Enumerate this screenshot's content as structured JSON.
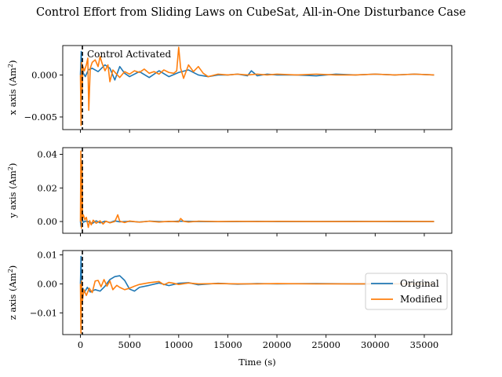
{
  "chart_data": {
    "type": "line",
    "title": "Control Effort from Sliding Laws on CubeSat, All-in-One Disturbance Case",
    "xlabel": "Time (s)",
    "xlim": [
      -1800,
      37800
    ],
    "xticks": [
      0,
      5000,
      10000,
      15000,
      20000,
      25000,
      30000,
      35000
    ],
    "xtick_labels": [
      "0",
      "5000",
      "10000",
      "15000",
      "20000",
      "25000",
      "30000",
      "35000"
    ],
    "activation_time": 200,
    "annotation": "Control Activated",
    "legend": {
      "placement": "right",
      "entries": [
        {
          "name": "Original",
          "color": "#1f77b4"
        },
        {
          "name": "Modified",
          "color": "#ff7f0e"
        }
      ]
    },
    "subplots": [
      {
        "ylabel": "x axis (Am²)",
        "ylabel_main": "x axis (Am",
        "ylabel_sup": "2",
        "ylabel_end": ")",
        "ylim": [
          -0.0065,
          0.0035
        ],
        "yticks": [
          0.0,
          -0.005
        ],
        "ytick_labels": [
          "0.000",
          "−0.005"
        ],
        "series": [
          {
            "name": "Original",
            "color": "#1f77b4",
            "x": [
              0,
              80,
              150,
              200,
              300,
              500,
              800,
              1200,
              1800,
              2500,
              3000,
              3500,
              4000,
              4500,
              5000,
              6000,
              7000,
              8000,
              9000,
              10000,
              11000,
              12000,
              13000,
              14000,
              15000,
              16000,
              17000,
              17400,
              18000,
              19000,
              20000,
              22000,
              24000,
              26000,
              28000,
              30000,
              32000,
              34000,
              36000
            ],
            "y": [
              0.0,
              0.0028,
              0.0005,
              0.001,
              0.0002,
              -0.0002,
              0.0006,
              0.0008,
              0.0004,
              0.0012,
              0.0008,
              -0.0006,
              0.001,
              0.0002,
              -0.0002,
              0.0004,
              -0.0003,
              0.0005,
              -0.0002,
              0.0003,
              0.0006,
              0.0,
              -0.0002,
              0.0,
              0.0,
              0.0001,
              -0.0001,
              0.0005,
              -0.0001,
              0.0001,
              0.0,
              0.0,
              -0.0001,
              0.0001,
              0.0,
              0.0001,
              0.0,
              0.0001,
              0.0
            ]
          },
          {
            "name": "Modified",
            "color": "#ff7f0e",
            "x": [
              0,
              60,
              120,
              180,
              250,
              400,
              600,
              750,
              850,
              1000,
              1200,
              1500,
              1800,
              2000,
              2200,
              2500,
              2800,
              3000,
              3300,
              3600,
              4000,
              4500,
              5000,
              5500,
              6000,
              6500,
              7000,
              7500,
              8000,
              8500,
              9000,
              9500,
              9800,
              10000,
              10200,
              10500,
              11000,
              11500,
              12000,
              12500,
              13000,
              14000,
              15000,
              16000,
              17000,
              18000,
              19000,
              20000,
              22000,
              24000,
              26000,
              28000,
              30000,
              32000,
              34000,
              36000
            ],
            "y": [
              0.0,
              -0.006,
              0.0015,
              -0.002,
              0.001,
              0.0005,
              0.0012,
              0.002,
              -0.0042,
              0.0008,
              0.0015,
              0.0018,
              0.001,
              0.0022,
              0.0014,
              0.0005,
              0.0012,
              -0.0008,
              0.0006,
              0.0002,
              -0.0003,
              0.0004,
              0.0001,
              0.0005,
              0.0003,
              0.0007,
              0.0002,
              0.0004,
              0.0001,
              0.0006,
              0.0003,
              0.0002,
              0.0005,
              0.0033,
              0.0008,
              -0.0004,
              0.0012,
              0.0004,
              0.001,
              0.0002,
              -0.0002,
              0.0001,
              0.0,
              0.0001,
              0.0,
              0.0001,
              0.0,
              0.0001,
              0.0,
              0.0001,
              0.0,
              0.0,
              0.0001,
              0.0,
              0.0001,
              0.0
            ]
          }
        ]
      },
      {
        "ylabel": "y axis (Am²)",
        "ylabel_main": "y axis (Am",
        "ylabel_sup": "2",
        "ylabel_end": ")",
        "ylim": [
          -0.007,
          0.044
        ],
        "yticks": [
          0.0,
          0.02,
          0.04
        ],
        "ytick_labels": [
          "0.00",
          "0.02",
          "0.04"
        ],
        "series": [
          {
            "name": "Original",
            "color": "#1f77b4",
            "x": [
              0,
              60,
              120,
              200,
              300,
              500,
              800,
              1200,
              1600,
              2000,
              2500,
              3000,
              3500,
              4000,
              5000,
              6000,
              7000,
              8000,
              9000,
              10000,
              12000,
              14000,
              16000,
              18000,
              20000,
              24000,
              28000,
              32000,
              36000
            ],
            "y": [
              0.0,
              -0.003,
              0.0008,
              0.0012,
              -0.0005,
              0.0002,
              0.0,
              -0.0012,
              0.0004,
              -0.0008,
              0.0002,
              -0.0006,
              0.0004,
              -0.0002,
              0.0001,
              -0.0003,
              0.0002,
              0.0,
              -0.0001,
              0.0002,
              0.0,
              -0.0001,
              0.0,
              0.0001,
              0.0,
              0.0,
              0.0001,
              0.0,
              0.0
            ]
          },
          {
            "name": "Modified",
            "color": "#ff7f0e",
            "x": [
              0,
              40,
              100,
              160,
              220,
              300,
              450,
              600,
              800,
              950,
              1100,
              1300,
              1600,
              2000,
              2300,
              2600,
              3000,
              3500,
              3800,
              4000,
              4500,
              5000,
              6000,
              7000,
              8000,
              9000,
              10000,
              10200,
              10500,
              11000,
              12000,
              14000,
              16000,
              18000,
              20000,
              24000,
              28000,
              32000,
              36000
            ],
            "y": [
              0.0,
              0.042,
              -0.004,
              0.035,
              0.002,
              0.004,
              0.001,
              0.0025,
              -0.0035,
              0.0005,
              -0.002,
              0.0008,
              -0.001,
              0.0004,
              -0.0015,
              0.0002,
              -0.0008,
              0.0,
              0.004,
              0.0002,
              -0.0006,
              0.0003,
              -0.0004,
              0.0002,
              -0.0003,
              0.0001,
              -0.0002,
              0.0018,
              0.0001,
              -0.0003,
              0.0002,
              0.0,
              0.0001,
              0.0,
              0.0001,
              0.0,
              0.0,
              0.0001,
              0.0
            ]
          }
        ]
      },
      {
        "ylabel": "z axis (Am²)",
        "ylabel_main": "z axis (Am",
        "ylabel_sup": "2",
        "ylabel_end": ")",
        "ylim": [
          -0.0175,
          0.0115
        ],
        "yticks": [
          0.01,
          0.0,
          -0.01
        ],
        "ytick_labels": [
          "0.01",
          "0.00",
          "−0.01"
        ],
        "series": [
          {
            "name": "Original",
            "color": "#1f77b4",
            "x": [
              0,
              60,
              150,
              250,
              400,
              700,
              1000,
              1500,
              2000,
              2500,
              3000,
              3500,
              4000,
              4500,
              5000,
              5500,
              6000,
              7000,
              8000,
              9000,
              10000,
              11000,
              12000,
              14000,
              16000,
              18000,
              20000,
              24000,
              28000,
              32000,
              36000
            ],
            "y": [
              0.0,
              0.0095,
              -0.006,
              -0.0015,
              -0.003,
              -0.0012,
              -0.0028,
              -0.002,
              -0.0025,
              -0.0008,
              0.0015,
              0.0025,
              0.0028,
              0.0012,
              -0.0018,
              -0.0025,
              -0.0012,
              -0.0005,
              0.0003,
              -0.0006,
              0.0002,
              0.0004,
              -0.0003,
              0.0002,
              -0.0001,
              0.0001,
              0.0,
              0.0001,
              0.0,
              0.0,
              0.0
            ]
          },
          {
            "name": "Modified",
            "color": "#ff7f0e",
            "x": [
              0,
              50,
              120,
              200,
              350,
              600,
              900,
              1200,
              1500,
              1800,
              2100,
              2400,
              2700,
              3000,
              3300,
              3700,
              4000,
              4500,
              5000,
              5500,
              6000,
              7000,
              8000,
              8500,
              9000,
              9500,
              10000,
              11000,
              12000,
              14000,
              16000,
              18000,
              20000,
              24000,
              28000,
              32000,
              36000
            ],
            "y": [
              0.0,
              -0.017,
              0.001,
              -0.006,
              -0.002,
              -0.004,
              -0.0015,
              -0.003,
              0.001,
              0.0012,
              -0.001,
              0.0015,
              -0.0008,
              0.001,
              -0.002,
              -0.0005,
              -0.0012,
              -0.002,
              -0.0015,
              -0.0008,
              -0.0002,
              0.0004,
              0.0008,
              -0.0003,
              0.0005,
              0.0002,
              -0.0002,
              0.0003,
              0.0,
              0.0001,
              0.0,
              0.0,
              0.0001,
              0.0,
              0.0,
              0.0,
              0.0
            ]
          }
        ]
      }
    ]
  }
}
